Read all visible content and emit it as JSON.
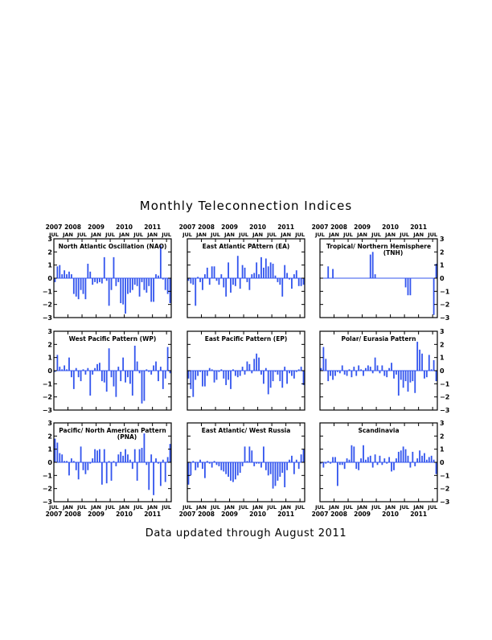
{
  "title": "Monthly Teleconnection Indices",
  "footer": "Data updated through August 2011",
  "axis": {
    "ylim": [
      -3,
      3
    ],
    "y_ticks": [
      "3",
      "2",
      "1",
      "0",
      "−1",
      "−2",
      "−3"
    ],
    "months": [
      "JUL",
      "JAN",
      "JUL",
      "JAN",
      "JUL",
      "JAN",
      "JUL",
      "JAN",
      "JUL"
    ],
    "years": [
      "2007",
      "2008",
      "2009",
      "2010",
      "2011"
    ],
    "start": "2007-07",
    "end": "2011-08"
  },
  "colors": {
    "bar": "#3355ee",
    "zero_line": "#3355ee",
    "frame": "#000000"
  },
  "chart_data": [
    {
      "type": "bar",
      "title": "North Atlantic Oscillation (NAO)",
      "values": [
        -0.3,
        0.9,
        1.0,
        0.3,
        0.6,
        0.3,
        0.5,
        0.3,
        -1.2,
        -1.4,
        -1.6,
        -0.9,
        -1.2,
        -1.6,
        1.1,
        0.5,
        -0.5,
        -0.3,
        -0.4,
        -0.3,
        -0.4,
        1.6,
        -0.2,
        -2.1,
        -0.9,
        1.6,
        -0.6,
        -0.3,
        -1.9,
        -2.0,
        -2.7,
        -1.2,
        -1.1,
        -0.9,
        -0.5,
        -0.6,
        -1.4,
        -0.3,
        -0.9,
        -1.1,
        -0.6,
        -1.8,
        -1.8,
        0.3,
        0.2,
        2.5,
        -0.1,
        -0.9,
        -1.2,
        -1.9
      ]
    },
    {
      "type": "bar",
      "title": "East Atlantic PAttern (EA)",
      "values": [
        -0.2,
        -0.4,
        -0.5,
        -2.1,
        0.1,
        -0.3,
        -0.9,
        0.3,
        0.8,
        -0.5,
        0.9,
        0.9,
        -0.2,
        -0.5,
        0.3,
        -0.7,
        -1.4,
        1.2,
        -1.1,
        -0.5,
        -0.6,
        1.7,
        -0.8,
        1.0,
        0.8,
        -0.3,
        -0.9,
        0.3,
        0.4,
        1.2,
        0.3,
        1.6,
        0.8,
        1.5,
        0.9,
        1.2,
        1.1,
        0.2,
        -0.3,
        -0.5,
        -1.4,
        1.0,
        0.4,
        -0.1,
        -0.8,
        0.3,
        0.6,
        -0.6,
        -0.6,
        -0.5,
        0.4,
        1.0
      ]
    },
    {
      "type": "bar",
      "title": "Tropical/ Northern Hemisphere",
      "subtitle": "(TNH)",
      "values": [
        0,
        0,
        0,
        0.9,
        0,
        0.7,
        0,
        0,
        0,
        0,
        0,
        0,
        0,
        0,
        0,
        0,
        0,
        0,
        0,
        0,
        0,
        1.8,
        2.0,
        0.3,
        0,
        0,
        0,
        0,
        0,
        0,
        0,
        0,
        0,
        0,
        0,
        0,
        -0.7,
        -1.3,
        -1.3,
        0,
        0,
        0,
        0,
        0,
        0,
        0,
        0,
        0,
        -2.8,
        1.1,
        0.9,
        0
      ]
    },
    {
      "type": "bar",
      "title": "West Pacific Pattern (WP)",
      "values": [
        -0.1,
        1.2,
        0.3,
        0.1,
        0.4,
        0.1,
        1.0,
        -0.5,
        -1.4,
        0.2,
        -0.5,
        -0.8,
        0.1,
        -0.3,
        0.2,
        -1.9,
        -0.3,
        0.2,
        0.5,
        0.6,
        -0.8,
        -0.9,
        -1.6,
        1.7,
        -0.5,
        -1.2,
        -2.0,
        0.3,
        -0.8,
        1.0,
        -0.9,
        -0.5,
        -1.0,
        -1.9,
        1.9,
        0.7,
        -0.2,
        -2.5,
        -2.3,
        0.1,
        -0.1,
        -0.3,
        0.4,
        0.7,
        -0.8,
        0.3,
        -1.4,
        -0.6,
        1.8,
        -0.2,
        -0.2,
        -0.5
      ]
    },
    {
      "type": "bar",
      "title": "East Pacific Pattern (EP)",
      "values": [
        -0.6,
        -1.4,
        -2.0,
        -0.7,
        -0.4,
        -0.1,
        -1.2,
        -1.2,
        -0.4,
        0.2,
        0.1,
        -0.9,
        -0.7,
        -0.1,
        0.1,
        -0.6,
        -1.1,
        -0.7,
        -1.4,
        0.1,
        -0.4,
        -0.5,
        -0.4,
        0.3,
        -0.3,
        0.7,
        0.5,
        -0.2,
        0.9,
        1.3,
        1.0,
        -0.3,
        -1.0,
        0.2,
        -1.8,
        -1.3,
        -0.8,
        -0.1,
        -0.3,
        -0.8,
        -1.3,
        0.3,
        -1.0,
        -0.2,
        -0.4,
        -0.6,
        -0.1,
        0.1,
        0.3,
        -1.1,
        -2.2,
        -0.6
      ]
    },
    {
      "type": "bar",
      "title": "Polar/ Eurasia Pattern",
      "values": [
        0.2,
        1.8,
        0.9,
        -0.8,
        -0.4,
        -0.7,
        -0.4,
        -0.1,
        -0.2,
        0.4,
        -0.3,
        -0.4,
        0.1,
        -0.5,
        0.3,
        -0.4,
        0.4,
        0.1,
        -0.4,
        0.2,
        0.4,
        0.3,
        -0.2,
        1.0,
        0.4,
        -0.2,
        0.4,
        -0.4,
        -0.5,
        0.2,
        0.6,
        -0.6,
        -0.3,
        -1.9,
        -0.7,
        -1.3,
        -0.8,
        -1.6,
        -0.9,
        -0.8,
        -1.7,
        2.2,
        1.6,
        1.3,
        -0.6,
        -0.5,
        1.2,
        0.1,
        0.8,
        -0.8,
        -0.4,
        -1.1,
        -0.3,
        -0.2
      ]
    },
    {
      "type": "bar",
      "title": "Pacific/ North American Pattern",
      "subtitle": "(PNA)",
      "values": [
        1.8,
        1.5,
        0.7,
        0.6,
        0.1,
        0.1,
        -1.0,
        0.3,
        0.1,
        -0.6,
        -1.3,
        1.2,
        -0.6,
        -0.9,
        -0.6,
        -0.1,
        0.3,
        1.0,
        0.9,
        1.0,
        -1.7,
        1.0,
        -1.6,
        0.1,
        -1.4,
        0.1,
        -0.3,
        0.6,
        0.8,
        0.5,
        1.0,
        0.6,
        0.2,
        -0.5,
        1.0,
        -1.4,
        1.0,
        1.1,
        2.2,
        -0.2,
        -2.1,
        0.6,
        -2.5,
        0.3,
        -0.1,
        -1.8,
        0.2,
        -1.5,
        0.4,
        1.4
      ]
    },
    {
      "type": "bar",
      "title": "East Atlantic/ West Russia",
      "values": [
        -1.7,
        -1.0,
        0.1,
        -0.6,
        -0.4,
        0.2,
        -0.5,
        -1.2,
        0.1,
        -0.1,
        -0.4,
        0.1,
        -0.2,
        -0.3,
        -0.6,
        -0.7,
        -0.9,
        -1.1,
        -1.4,
        -1.5,
        -1.3,
        -1.0,
        -0.8,
        -0.3,
        1.2,
        0.1,
        1.2,
        0.9,
        -0.3,
        -0.1,
        -0.1,
        -0.4,
        1.2,
        -0.6,
        -1.0,
        -0.9,
        -2.0,
        -1.8,
        -1.4,
        -1.1,
        -0.8,
        -1.9,
        -0.6,
        0.2,
        0.5,
        -0.9,
        0.2,
        -0.5,
        0.6,
        1.0
      ]
    },
    {
      "type": "bar",
      "title": "Scandinavia",
      "values": [
        -0.1,
        -0.4,
        -0.1,
        0.1,
        -0.1,
        0.4,
        0.4,
        -1.8,
        -0.2,
        -0.2,
        -0.5,
        0.3,
        0.2,
        1.3,
        1.2,
        -0.5,
        -0.6,
        0.3,
        1.3,
        0.2,
        0.4,
        0.5,
        -0.4,
        0.6,
        -0.2,
        0.5,
        -0.2,
        0.3,
        -0.1,
        0.4,
        -0.7,
        -0.6,
        0.3,
        0.8,
        0.9,
        1.2,
        1.0,
        0.5,
        -0.4,
        0.8,
        -0.3,
        0.3,
        0.9,
        0.5,
        0.7,
        0.2,
        0.4,
        0.5,
        0.2,
        -0.9,
        -0.7,
        -1.0,
        2.5,
        0.3
      ]
    }
  ]
}
